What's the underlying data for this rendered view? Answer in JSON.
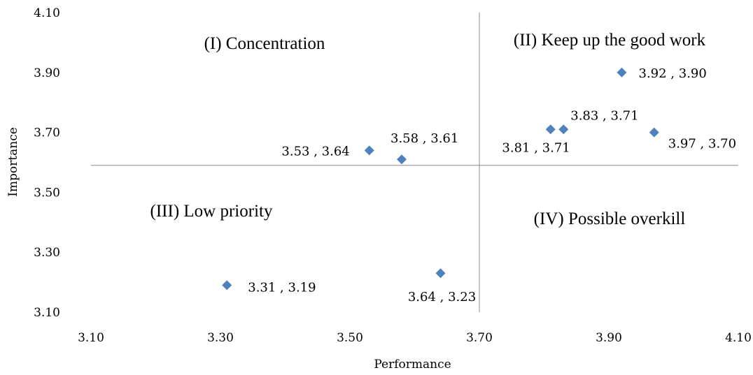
{
  "chart_data": {
    "type": "scatter",
    "title": "",
    "xlabel": "Performance",
    "ylabel": "Importance",
    "xlim": [
      3.1,
      4.1
    ],
    "ylim": [
      3.1,
      4.1
    ],
    "x_ticks": [
      "3.10",
      "3.30",
      "3.50",
      "3.70",
      "3.90",
      "4.10"
    ],
    "y_ticks": [
      "3.10",
      "3.30",
      "3.50",
      "3.70",
      "3.90",
      "4.10"
    ],
    "grid": false,
    "legend": "none",
    "marker_color": "#4f81bd",
    "divider_color": "#8c8c8c",
    "quadrant_dividers": {
      "x": 3.7,
      "y": 3.59
    },
    "quadrants": [
      {
        "label": "(I) Concentration"
      },
      {
        "label": "(II) Keep up the good work"
      },
      {
        "label": "(III) Low priority"
      },
      {
        "label": "(IV) Possible overkill"
      }
    ],
    "points": [
      {
        "x": 3.92,
        "y": 3.9,
        "label": "3.92 , 3.90"
      },
      {
        "x": 3.83,
        "y": 3.71,
        "label": "3.83 , 3.71"
      },
      {
        "x": 3.81,
        "y": 3.71,
        "label": "3.81 , 3.71"
      },
      {
        "x": 3.97,
        "y": 3.7,
        "label": "3.97 , 3.70"
      },
      {
        "x": 3.53,
        "y": 3.64,
        "label": "3.53 , 3.64"
      },
      {
        "x": 3.58,
        "y": 3.61,
        "label": "3.58 , 3.61"
      },
      {
        "x": 3.31,
        "y": 3.19,
        "label": "3.31 , 3.19"
      },
      {
        "x": 3.64,
        "y": 3.23,
        "label": "3.64 , 3.23"
      }
    ]
  }
}
